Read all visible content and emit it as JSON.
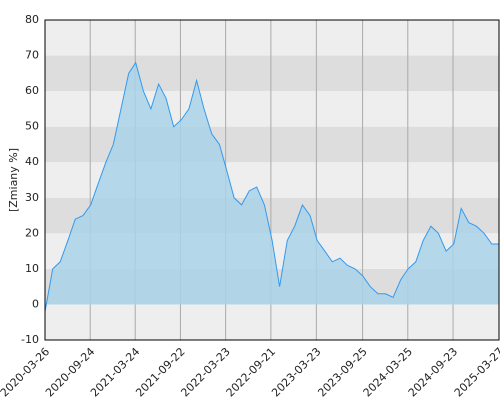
{
  "chart_data": {
    "type": "area",
    "y_label": "[Zmiany %]",
    "x": [
      "2020-03-26",
      "2020-04-26",
      "2020-05-26",
      "2020-06-26",
      "2020-07-26",
      "2020-08-26",
      "2020-09-26",
      "2020-10-26",
      "2020-11-26",
      "2020-12-26",
      "2021-01-26",
      "2021-02-26",
      "2021-03-26",
      "2021-04-26",
      "2021-05-26",
      "2021-06-26",
      "2021-07-26",
      "2021-08-26",
      "2021-09-26",
      "2021-10-26",
      "2021-11-26",
      "2021-12-26",
      "2022-01-26",
      "2022-02-26",
      "2022-03-26",
      "2022-04-26",
      "2022-05-26",
      "2022-06-26",
      "2022-07-26",
      "2022-08-26",
      "2022-09-26",
      "2022-10-26",
      "2022-11-26",
      "2022-12-26",
      "2023-01-26",
      "2023-02-26",
      "2023-03-26",
      "2023-04-26",
      "2023-05-26",
      "2023-06-26",
      "2023-07-26",
      "2023-08-26",
      "2023-09-26",
      "2023-10-26",
      "2023-11-26",
      "2023-12-26",
      "2024-01-26",
      "2024-02-26",
      "2024-03-26",
      "2024-04-26",
      "2024-05-26",
      "2024-06-26",
      "2024-07-26",
      "2024-08-26",
      "2024-09-26",
      "2024-10-26",
      "2024-11-26",
      "2024-12-26",
      "2025-01-26",
      "2025-02-26",
      "2025-03-27"
    ],
    "series": [
      {
        "color": "#3399ee",
        "fill": "#a9d4e8",
        "values": [
          -2,
          10,
          12,
          18,
          24,
          25,
          28,
          34,
          40,
          45,
          55,
          65,
          68,
          60,
          55,
          62,
          58,
          50,
          52,
          55,
          63,
          55,
          48,
          45,
          38,
          30,
          28,
          32,
          33,
          28,
          18,
          5,
          18,
          22,
          28,
          25,
          18,
          15,
          12,
          13,
          11,
          10,
          8,
          5,
          3,
          3,
          2,
          7,
          10,
          12,
          18,
          22,
          20,
          15,
          17,
          27,
          23,
          22,
          20,
          17,
          17
        ]
      }
    ],
    "xlim": [
      "2020-03-26",
      "2025-03-27"
    ],
    "xticks": [
      "2020-03-26",
      "2020-09-24",
      "2021-03-24",
      "2021-09-22",
      "2022-03-23",
      "2022-09-21",
      "2023-03-23",
      "2023-09-25",
      "2024-03-25",
      "2024-09-23",
      "2025-03-27"
    ],
    "ylim": [
      -10,
      80
    ],
    "yticks": [
      -10,
      0,
      10,
      20,
      30,
      40,
      50,
      60,
      70,
      80
    ],
    "grid": true
  }
}
